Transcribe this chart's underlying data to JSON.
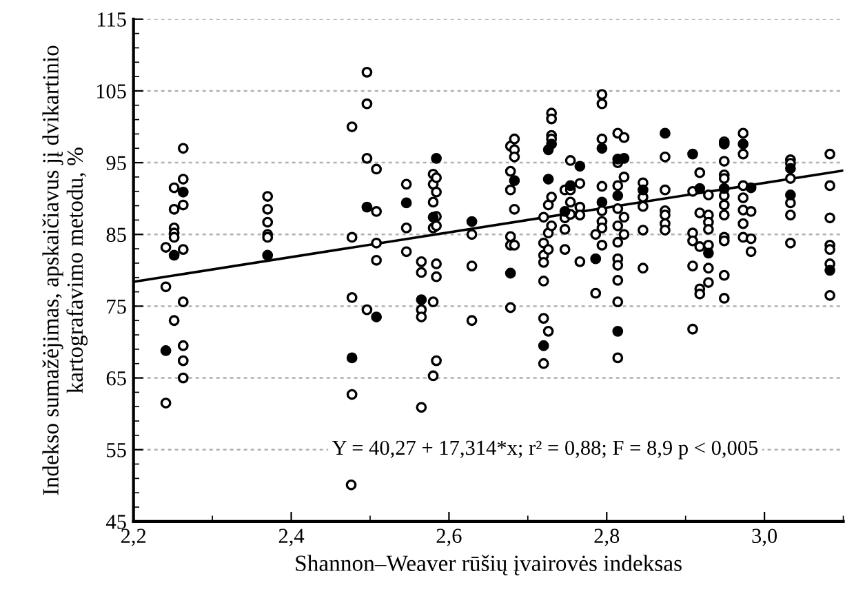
{
  "chart_data": {
    "type": "scatter",
    "xlabel": "Shannon–Weaver rūšių įvairovės indeksas",
    "ylabel": "Indekso sumažėjimas, apskaičiavus jį dvikartinio kartografavimo metodu, %",
    "xlim": [
      2.2,
      3.1
    ],
    "ylim": [
      45,
      115
    ],
    "xticks": [
      {
        "value": 2.2,
        "label": "2,2"
      },
      {
        "value": 2.4,
        "label": "2,4"
      },
      {
        "value": 2.6,
        "label": "2,6"
      },
      {
        "value": 2.8,
        "label": "2,8"
      },
      {
        "value": 3.0,
        "label": "3,0"
      }
    ],
    "yticks": [
      45,
      55,
      65,
      75,
      85,
      95,
      105,
      115
    ],
    "grid": "y",
    "annotations": [
      "Y = 40,27 + 17,314*x; r² = 0,88; F = 8,9 p < 0,005"
    ],
    "series": [
      {
        "marker": "circle",
        "color": "#ffffff",
        "x": [
          2.241,
          2.241,
          2.241,
          2.2515,
          2.2515,
          2.2515,
          2.2515,
          2.2515,
          2.2515,
          2.263,
          2.263,
          2.263,
          2.263,
          2.263,
          2.263,
          2.263,
          2.263,
          2.37,
          2.37,
          2.37,
          2.37,
          2.37,
          2.477,
          2.477,
          2.477,
          2.477,
          2.476,
          2.496,
          2.496,
          2.496,
          2.496,
          2.508,
          2.508,
          2.508,
          2.508,
          2.546,
          2.546,
          2.546,
          2.565,
          2.565,
          2.565,
          2.565,
          2.565,
          2.58,
          2.58,
          2.58,
          2.58,
          2.58,
          2.58,
          2.584,
          2.584,
          2.584,
          2.584,
          2.584,
          2.584,
          2.584,
          2.629,
          2.629,
          2.629,
          2.678,
          2.678,
          2.678,
          2.678,
          2.678,
          2.678,
          2.683,
          2.683,
          2.683,
          2.683,
          2.683,
          2.72,
          2.72,
          2.72,
          2.72,
          2.72,
          2.72,
          2.72,
          2.726,
          2.726,
          2.726,
          2.726,
          2.73,
          2.73,
          2.73,
          2.73,
          2.73,
          2.73,
          2.747,
          2.747,
          2.747,
          2.747,
          2.754,
          2.754,
          2.754,
          2.754,
          2.766,
          2.766,
          2.766,
          2.766,
          2.786,
          2.786,
          2.794,
          2.794,
          2.794,
          2.794,
          2.794,
          2.794,
          2.794,
          2.794,
          2.814,
          2.814,
          2.814,
          2.814,
          2.814,
          2.814,
          2.814,
          2.814,
          2.814,
          2.814,
          2.814,
          2.822,
          2.822,
          2.822,
          2.822,
          2.846,
          2.846,
          2.846,
          2.846,
          2.846,
          2.874,
          2.874,
          2.874,
          2.874,
          2.874,
          2.874,
          2.909,
          2.909,
          2.909,
          2.909,
          2.909,
          2.918,
          2.918,
          2.918,
          2.918,
          2.918,
          2.929,
          2.929,
          2.929,
          2.929,
          2.929,
          2.929,
          2.929,
          2.949,
          2.949,
          2.949,
          2.949,
          2.949,
          2.949,
          2.949,
          2.949,
          2.949,
          2.949,
          2.949,
          2.973,
          2.973,
          2.973,
          2.973,
          2.973,
          2.973,
          2.973,
          2.983,
          2.983,
          2.983,
          3.033,
          3.033,
          3.033,
          3.033,
          3.033,
          3.033,
          3.083,
          3.083,
          3.083,
          3.083,
          3.083,
          3.083,
          3.083
        ],
        "values": [
          83.2,
          77.7,
          61.5,
          91.5,
          88.5,
          85.9,
          85.2,
          84.6,
          73.0,
          97.0,
          92.7,
          89.1,
          82.9,
          75.6,
          69.5,
          67.4,
          65.0,
          90.3,
          88.5,
          86.7,
          85.0,
          84.6,
          100.0,
          84.6,
          76.2,
          62.7,
          50.1,
          107.6,
          103.2,
          95.6,
          74.5,
          94.1,
          88.2,
          83.8,
          81.4,
          92.0,
          85.9,
          82.6,
          81.2,
          79.7,
          74.5,
          73.5,
          60.9,
          93.4,
          92.0,
          89.5,
          85.9,
          75.6,
          65.3,
          92.9,
          90.9,
          87.5,
          86.2,
          80.9,
          79.1,
          67.4,
          85.0,
          80.6,
          73.0,
          97.3,
          93.8,
          91.2,
          84.7,
          83.5,
          74.8,
          98.3,
          96.8,
          95.8,
          88.5,
          83.5,
          87.4,
          83.8,
          82.1,
          81.1,
          78.5,
          73.3,
          67.0,
          89.1,
          85.2,
          82.9,
          71.5,
          101.9,
          101.1,
          98.8,
          98.3,
          90.2,
          86.2,
          91.2,
          87.3,
          85.7,
          82.9,
          95.3,
          91.2,
          89.5,
          87.8,
          92.1,
          88.8,
          87.7,
          81.2,
          85.0,
          76.8,
          104.5,
          103.2,
          98.3,
          91.7,
          88.3,
          86.8,
          85.9,
          83.5,
          99.1,
          95.0,
          91.8,
          88.6,
          86.2,
          83.9,
          81.6,
          80.7,
          78.6,
          75.6,
          67.8,
          98.5,
          93.0,
          87.4,
          85.0,
          92.2,
          90.2,
          88.9,
          85.6,
          80.3,
          95.8,
          91.2,
          88.3,
          87.7,
          86.5,
          85.6,
          91.0,
          85.2,
          84.1,
          80.6,
          71.8,
          93.6,
          88.0,
          83.3,
          77.4,
          76.7,
          90.5,
          87.7,
          86.7,
          85.7,
          83.5,
          80.3,
          78.3,
          97.9,
          95.2,
          93.3,
          92.8,
          90.4,
          89.1,
          87.7,
          84.6,
          84.1,
          79.3,
          76.1,
          99.1,
          96.2,
          91.8,
          90.1,
          88.4,
          86.5,
          84.6,
          88.2,
          84.4,
          82.6,
          95.4,
          94.9,
          92.8,
          89.4,
          87.7,
          83.8,
          96.2,
          91.8,
          87.3,
          83.5,
          82.9,
          80.9,
          76.5
        ]
      },
      {
        "marker": "circle",
        "color": "#000000",
        "x": [
          2.241,
          2.2515,
          2.263,
          2.37,
          2.477,
          2.496,
          2.508,
          2.546,
          2.565,
          2.58,
          2.584,
          2.629,
          2.678,
          2.683,
          2.72,
          2.726,
          2.726,
          2.73,
          2.747,
          2.754,
          2.766,
          2.786,
          2.794,
          2.794,
          2.814,
          2.814,
          2.814,
          2.822,
          2.846,
          2.874,
          2.909,
          2.918,
          2.929,
          2.949,
          2.949,
          2.973,
          2.983,
          3.033,
          3.033,
          3.083
        ],
        "values": [
          68.8,
          82.1,
          90.9,
          82.1,
          67.8,
          88.8,
          73.5,
          89.4,
          75.9,
          87.4,
          95.6,
          86.8,
          79.6,
          92.5,
          69.5,
          96.8,
          92.7,
          97.6,
          88.2,
          91.8,
          94.5,
          81.6,
          97.0,
          89.5,
          95.5,
          90.4,
          71.5,
          95.6,
          91.2,
          99.1,
          96.2,
          91.4,
          82.4,
          97.6,
          91.4,
          97.6,
          91.5,
          94.2,
          90.5,
          80.0
        ]
      },
      {
        "type": "line",
        "marker": "none",
        "color": "#000000",
        "x": [
          2.2,
          3.1
        ],
        "values": [
          78.4,
          93.9
        ]
      }
    ]
  }
}
